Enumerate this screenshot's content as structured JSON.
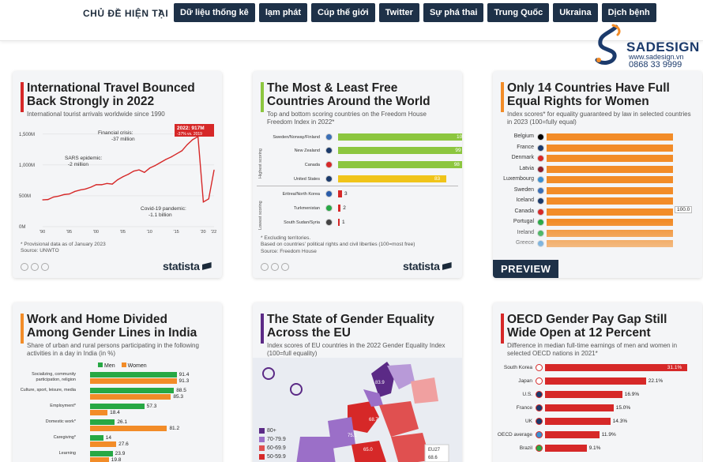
{
  "topbar": {
    "label": "CHỦ ĐỀ HIỆN TẠI",
    "tags": [
      "Dữ liệu thống kê",
      "lạm phát",
      "Cúp thế giới",
      "Twitter",
      "Sự phá thai",
      "Trung Quốc",
      "Ukraina",
      "Dịch bệnh"
    ]
  },
  "logo": {
    "name": "SADESIGN",
    "website": "www.sadesign.vn",
    "phone": "0868 33 9999"
  },
  "cards": {
    "travel": {
      "title": "International Travel Bounced Back Strongly in 2022",
      "subtitle": "International tourist arrivals worldwide since 1990",
      "callout_top": "2022: 917M",
      "callout_sub": "-37% vs. 2019",
      "annotations": [
        "Financial crisis:",
        "-37 million",
        "SARS epidemic:",
        "-2 million",
        "Covid-19 pandemic:",
        "-1.1 billion"
      ],
      "note1": "* Provisional data as of January 2023",
      "note2": "Source: UNWTO",
      "accent": "#d62828"
    },
    "free": {
      "title": "The Most & Least Free Countries Around the World",
      "subtitle": "Top and bottom scoring countries on the Freedom House Freedom Index in 2022*",
      "group_high": "Highest scoring",
      "group_low": "Lowest scoring",
      "note1": "* Excluding territories.",
      "note2": "Based on countries' political rights and civil liberties (100=most free)",
      "note3": "Source: Freedom House",
      "accent": "#8cc63f"
    },
    "women": {
      "title": "Only 14 Countries Have Full Equal Rights for Women",
      "subtitle": "Index scores* for equality guaranteed by law in selected countries in 2023 (100=fully equal)",
      "value_label": "100.0",
      "preview": "PREVIEW",
      "accent": "#f28c28"
    },
    "india": {
      "title": "Work and Home Divided Among Gender Lines in India",
      "subtitle": "Share of urban and rural persons participating in the following activities in a day in India (in %)",
      "legend": [
        "Men",
        "Women"
      ],
      "accent": "#f28c28"
    },
    "eu": {
      "title": "The State of Gender Equality Across the EU",
      "subtitle": "Index scores of EU countries in the 2022 Gender Equality Index (100=full equality)",
      "map_labels": [
        "83.9",
        "68.7",
        "75.1",
        "65.0",
        "EU27",
        "68.6"
      ],
      "legend": [
        "80+",
        "70-79.9",
        "60-69.9",
        "50-59.9"
      ],
      "accent": "#5b2a86"
    },
    "oecd": {
      "title": "OECD Gender Pay Gap Still Wide Open at 12 Percent",
      "subtitle": "Difference in median full-time earnings of men and women in selected OECD nations in 2021*",
      "accent": "#d62828"
    }
  },
  "chart_data": [
    {
      "type": "line",
      "title": "International Travel Bounced Back Strongly in 2022",
      "ylabel": "",
      "yticks": [
        "1,500M",
        "1,000M",
        "500M",
        "0M"
      ],
      "xticks": [
        "'90",
        "'95",
        "'00",
        "'05",
        "'10",
        "'15",
        "'20",
        "'22"
      ],
      "ylim": [
        0,
        1600
      ],
      "x": [
        1990,
        1991,
        1992,
        1993,
        1994,
        1995,
        1996,
        1997,
        1998,
        1999,
        2000,
        2001,
        2002,
        2003,
        2004,
        2005,
        2006,
        2007,
        2008,
        2009,
        2010,
        2011,
        2012,
        2013,
        2014,
        2015,
        2016,
        2017,
        2018,
        2019,
        2020,
        2021,
        2022
      ],
      "values": [
        435,
        440,
        480,
        495,
        520,
        530,
        570,
        595,
        610,
        640,
        680,
        680,
        700,
        690,
        760,
        810,
        850,
        900,
        920,
        880,
        950,
        990,
        1040,
        1090,
        1130,
        1180,
        1230,
        1330,
        1410,
        1460,
        400,
        450,
        917
      ],
      "grid": true
    },
    {
      "type": "bar",
      "title": "The Most & Least Free Countries Around the World",
      "categories": [
        "Sweden/Norway/Finland",
        "New Zealand",
        "Canada",
        "United States",
        "Eritrea/North Korea",
        "Turkmenistan",
        "South Sudan/Syria"
      ],
      "values": [
        100,
        99,
        98,
        83,
        3,
        2,
        1
      ],
      "xlim": [
        0,
        100
      ]
    },
    {
      "type": "bar",
      "title": "Only 14 Countries Have Full Equal Rights for Women",
      "categories": [
        "Belgium",
        "France",
        "Denmark",
        "Latvia",
        "Luxembourg",
        "Sweden",
        "Iceland",
        "Canada",
        "Portugal",
        "Ireland",
        "Greece"
      ],
      "values": [
        100,
        100,
        100,
        100,
        100,
        100,
        100,
        100,
        100,
        100,
        100
      ],
      "xlim": [
        0,
        100
      ]
    },
    {
      "type": "bar",
      "title": "Work and Home Divided Among Gender Lines in India",
      "categories": [
        "Socializing, community participation, religion",
        "Culture, sport, leisure, media",
        "Employment*",
        "Domestic work*",
        "Caregiving*",
        "Learning"
      ],
      "series": [
        {
          "name": "Men",
          "values": [
            91.4,
            88.5,
            57.3,
            26.1,
            14.0,
            23.9
          ]
        },
        {
          "name": "Women",
          "values": [
            91.3,
            85.3,
            18.4,
            81.2,
            27.6,
            19.8
          ]
        }
      ],
      "xlim": [
        0,
        100
      ]
    },
    {
      "type": "bar",
      "title": "OECD Gender Pay Gap Still Wide Open at 12 Percent",
      "categories": [
        "South Korea",
        "Japan",
        "U.S.",
        "France",
        "UK",
        "OECD average",
        "Brazil"
      ],
      "values": [
        31.1,
        22.1,
        16.9,
        15.0,
        14.3,
        11.9,
        9.1
      ],
      "value_labels": [
        "31.1%",
        "22.1%",
        "16.9%",
        "15.0%",
        "14.3%",
        "11.9%",
        "9.1%"
      ],
      "xlim": [
        0,
        32
      ]
    }
  ]
}
